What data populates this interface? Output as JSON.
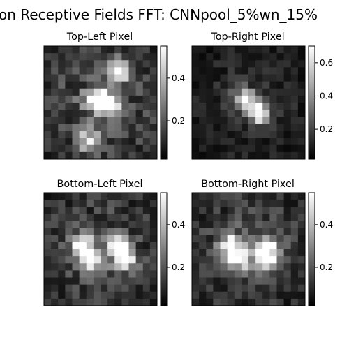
{
  "figure": {
    "title": "on Receptive Fields FFT: CNNpool_5%wn_15%"
  },
  "chart_data": [
    {
      "type": "heatmap",
      "title": "Top-Left  Pixel",
      "colormap": "gray",
      "grid_size": [
        16,
        16
      ],
      "vmin": 0.02,
      "vmax": 0.55,
      "colorbar_ticks": [
        0.2,
        0.4
      ],
      "hotspots": [
        {
          "row": 7,
          "col": 7,
          "value": 0.52
        },
        {
          "row": 8,
          "col": 9,
          "value": 0.52
        },
        {
          "row": 3,
          "col": 10,
          "value": 0.5
        },
        {
          "row": 13,
          "col": 6,
          "value": 0.45
        }
      ],
      "background_level": 0.22
    },
    {
      "type": "heatmap",
      "title": "Top-Right Pixel",
      "colormap": "gray",
      "grid_size": [
        16,
        16
      ],
      "vmin": 0.02,
      "vmax": 0.7,
      "colorbar_ticks": [
        0.2,
        0.4,
        0.6
      ],
      "hotspots": [
        {
          "row": 7,
          "col": 7,
          "value": 0.62
        },
        {
          "row": 9,
          "col": 9,
          "value": 0.66
        }
      ],
      "background_level": 0.16
    },
    {
      "type": "heatmap",
      "title": "Bottom-Left Pixel",
      "colormap": "gray",
      "grid_size": [
        16,
        16
      ],
      "vmin": 0.02,
      "vmax": 0.55,
      "colorbar_ticks": [
        0.2,
        0.4
      ],
      "hotspots": [
        {
          "row": 7,
          "col": 5,
          "value": 0.5
        },
        {
          "row": 7,
          "col": 10,
          "value": 0.52
        },
        {
          "row": 9,
          "col": 6,
          "value": 0.48
        },
        {
          "row": 9,
          "col": 11,
          "value": 0.5
        }
      ],
      "background_level": 0.2
    },
    {
      "type": "heatmap",
      "title": "Bottom-Right Pixel",
      "colormap": "gray",
      "grid_size": [
        16,
        16
      ],
      "vmin": 0.02,
      "vmax": 0.55,
      "colorbar_ticks": [
        0.2,
        0.4
      ],
      "hotspots": [
        {
          "row": 7,
          "col": 5,
          "value": 0.5
        },
        {
          "row": 7,
          "col": 10,
          "value": 0.5
        },
        {
          "row": 9,
          "col": 6,
          "value": 0.47
        },
        {
          "row": 9,
          "col": 10,
          "value": 0.48
        }
      ],
      "background_level": 0.2
    }
  ]
}
